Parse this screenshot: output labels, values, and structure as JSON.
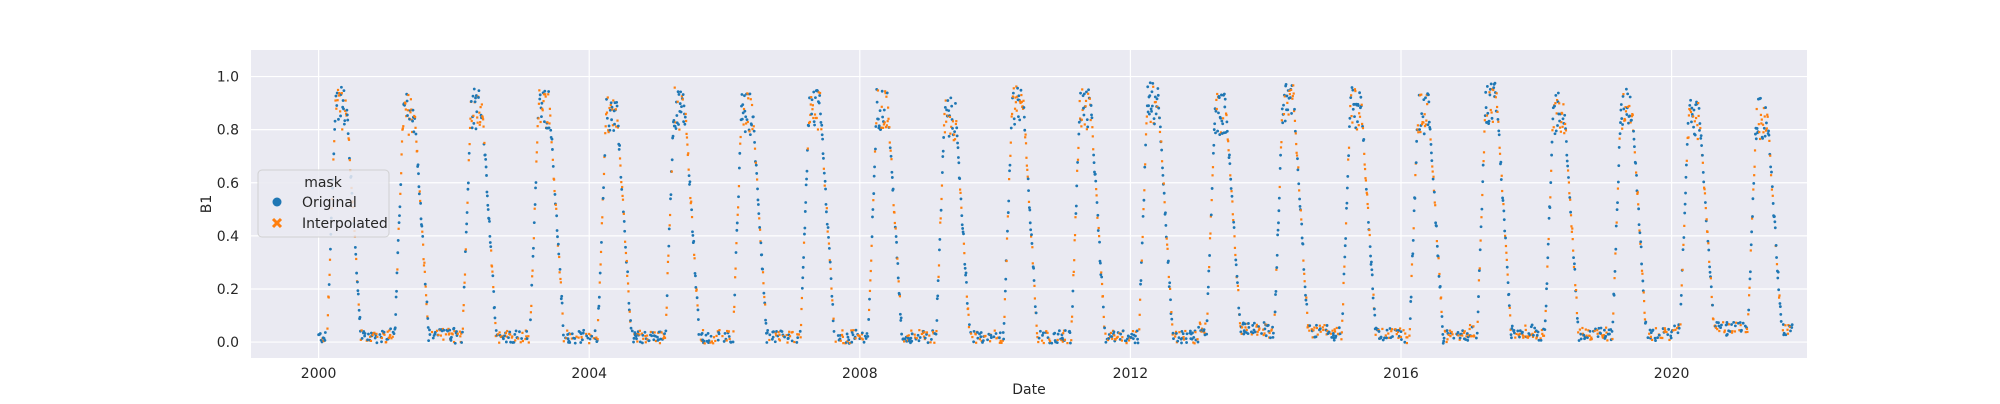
{
  "chart_data": {
    "type": "scatter",
    "xlabel": "Date",
    "ylabel": "B1",
    "x_type": "date",
    "xlim": [
      "1999-01-01",
      "2022-01-01"
    ],
    "ylim": [
      -0.06,
      1.1
    ],
    "x_ticks": [
      "2000",
      "2004",
      "2008",
      "2012",
      "2016",
      "2020"
    ],
    "x_tick_dates": [
      "2000-01-01",
      "2004-01-01",
      "2008-01-01",
      "2012-01-01",
      "2016-01-01",
      "2020-01-01"
    ],
    "y_ticks": [
      "0.0",
      "0.2",
      "0.4",
      "0.6",
      "0.8",
      "1.0"
    ],
    "y_tick_values": [
      0.0,
      0.2,
      0.4,
      0.6,
      0.8,
      1.0
    ],
    "grid": true,
    "style": "seaborn-darkgrid",
    "legend": {
      "title": "mask",
      "placement": "center-left",
      "entries": [
        {
          "label": "Original",
          "marker": "circle",
          "color": "#1f77b4"
        },
        {
          "label": "Interpolated",
          "marker": "x",
          "color": "#ff7f0e"
        }
      ]
    },
    "annual_cycle": {
      "years": [
        2000,
        2001,
        2002,
        2003,
        2004,
        2005,
        2006,
        2007,
        2008,
        2009,
        2010,
        2011,
        2012,
        2013,
        2014,
        2015,
        2016,
        2017,
        2018,
        2019,
        2020,
        2021
      ],
      "peak_values": [
        0.88,
        0.86,
        0.88,
        0.88,
        0.85,
        0.88,
        0.86,
        0.88,
        0.88,
        0.84,
        0.9,
        0.88,
        0.9,
        0.86,
        0.9,
        0.88,
        0.86,
        0.9,
        0.86,
        0.88,
        0.84,
        0.84
      ],
      "low_values": [
        0.02,
        0.03,
        0.02,
        0.02,
        0.02,
        0.02,
        0.02,
        0.02,
        0.02,
        0.02,
        0.02,
        0.02,
        0.02,
        0.05,
        0.04,
        0.03,
        0.02,
        0.04,
        0.03,
        0.03,
        0.05,
        0.05
      ],
      "rise_start_month": 1.5,
      "peak_end_month": 5,
      "decline_end_month": 7.5
    },
    "series": [
      {
        "name": "Original",
        "color": "#1f77b4"
      },
      {
        "name": "Interpolated",
        "color": "#ff7f0e"
      }
    ]
  }
}
